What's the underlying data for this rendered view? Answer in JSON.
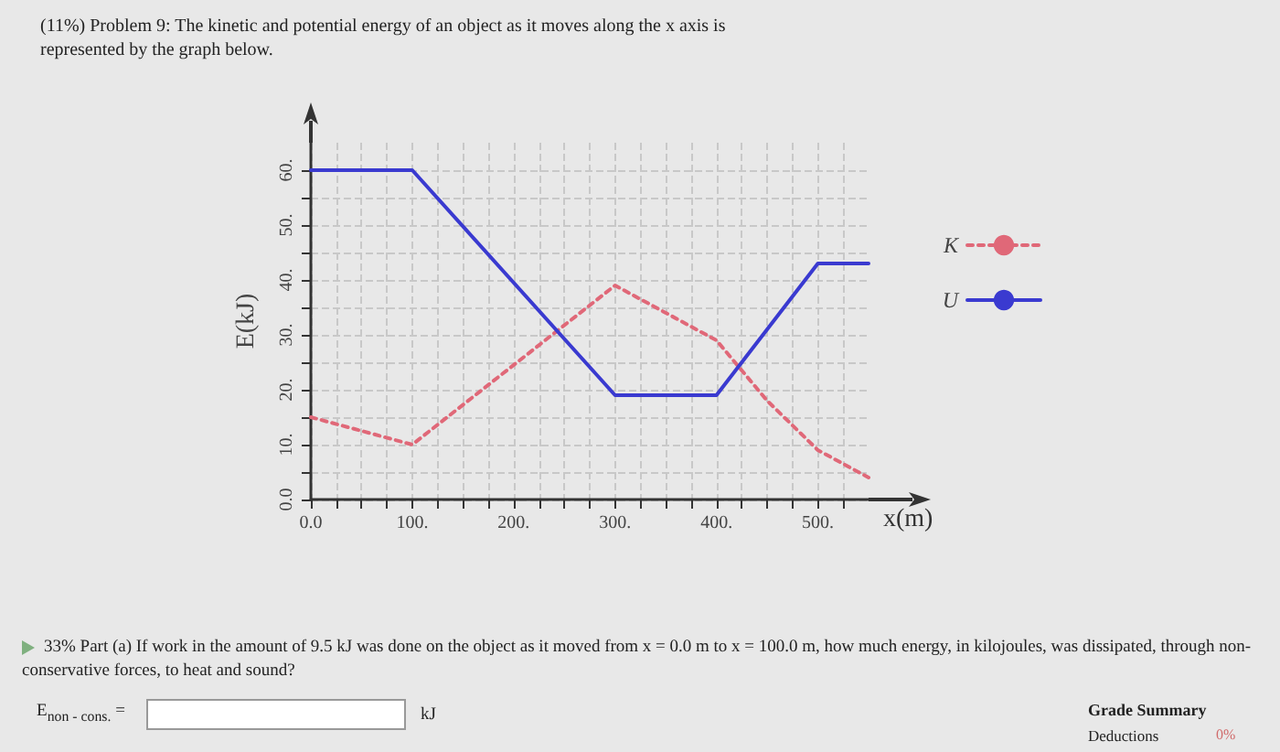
{
  "chart_data": {
    "type": "line",
    "title": "(11%) Problem 9: The kinetic and potential energy of an object as it moves along the x axis is represented by the graph below.",
    "xlabel": "x(m)",
    "ylabel": "E(kJ)",
    "xlim": [
      0,
      550
    ],
    "ylim": [
      0,
      65
    ],
    "xticks": [
      {
        "value": 0,
        "label": "0.0"
      },
      {
        "value": 100,
        "label": "100."
      },
      {
        "value": 200,
        "label": "200."
      },
      {
        "value": 300,
        "label": "300."
      },
      {
        "value": 400,
        "label": "400."
      },
      {
        "value": 500,
        "label": "500."
      }
    ],
    "yticks": [
      {
        "value": 0,
        "label": "0.0"
      },
      {
        "value": 10,
        "label": "10."
      },
      {
        "value": 20,
        "label": "20."
      },
      {
        "value": 30,
        "label": "30."
      },
      {
        "value": 40,
        "label": "40."
      },
      {
        "value": 50,
        "label": "50."
      },
      {
        "value": 60,
        "label": "60."
      }
    ],
    "series": [
      {
        "name": "K",
        "color": "#e06878",
        "line_style": "dotted",
        "x": [
          0,
          100,
          300,
          400,
          450,
          500,
          550
        ],
        "values": [
          15,
          10,
          39,
          29,
          18,
          9,
          4
        ]
      },
      {
        "name": "U",
        "color": "#3a3ad0",
        "line_style": "solid",
        "x": [
          0,
          100,
          300,
          400,
          500,
          550
        ],
        "values": [
          60,
          60,
          19,
          19,
          43,
          43
        ]
      }
    ],
    "marker": "none",
    "grid": true,
    "legend": "right",
    "annotations": [
      "33% Part (a) If work in the amount of 9.5 kJ was done on the object as it moved from x = 0.0 m to x = 100.0 m, how much energy, in kilojoules, was dissipated, through non-conservative forces, to heat and sound?",
      "E$_{non - cons.}$ =",
      "kJ",
      "Grade Summary",
      "Deductions",
      "0%"
    ]
  }
}
